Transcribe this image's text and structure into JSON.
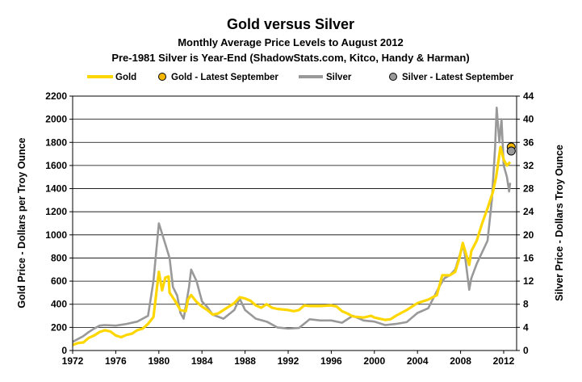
{
  "chart_data": {
    "type": "line",
    "title": "Gold versus Silver",
    "subtitle1": "Monthly Average Price Levels to August 2012",
    "subtitle2": "Pre-1981 Silver is Year-End (ShadowStats.com, Kitco, Handy & Harman)",
    "ylabel_left": "Gold Price - Dollars per Troy Ounce",
    "ylabel_right": "Silver Price - Dollars Troy Ounce",
    "x_ticks": [
      "1972",
      "1976",
      "1980",
      "1984",
      "1988",
      "1992",
      "1996",
      "2000",
      "2004",
      "2008",
      "2012"
    ],
    "y_left_ticks": [
      "0",
      "200",
      "400",
      "600",
      "800",
      "1000",
      "1200",
      "1400",
      "1600",
      "1800",
      "2000",
      "2200"
    ],
    "y_right_ticks": [
      "0",
      "4",
      "8",
      "12",
      "16",
      "20",
      "24",
      "28",
      "32",
      "36",
      "40",
      "44"
    ],
    "xlim": [
      1972,
      2013.2
    ],
    "ylim_left": [
      0,
      2200
    ],
    "ylim_right": [
      0,
      44
    ],
    "grid": "horizontal",
    "legend_position": "top",
    "colors": {
      "gold": "#FFD700",
      "silver": "#999999",
      "gold_marker": "#F5B800",
      "silver_marker": "#999999"
    },
    "legend": [
      {
        "label": "Gold",
        "kind": "line",
        "color": "#FFD700"
      },
      {
        "label": "Gold - Latest September",
        "kind": "marker",
        "color": "#F5B800"
      },
      {
        "label": "Silver",
        "kind": "line",
        "color": "#999999"
      },
      {
        "label": "Silver - Latest September",
        "kind": "marker",
        "color": "#999999"
      }
    ],
    "series": [
      {
        "name": "Gold",
        "axis": "left",
        "points": [
          [
            1972.0,
            48
          ],
          [
            1972.5,
            65
          ],
          [
            1973.0,
            70
          ],
          [
            1973.5,
            110
          ],
          [
            1974.0,
            130
          ],
          [
            1974.5,
            160
          ],
          [
            1975.0,
            175
          ],
          [
            1975.5,
            165
          ],
          [
            1976.0,
            130
          ],
          [
            1976.5,
            115
          ],
          [
            1977.0,
            135
          ],
          [
            1977.5,
            145
          ],
          [
            1978.0,
            175
          ],
          [
            1978.5,
            190
          ],
          [
            1979.0,
            230
          ],
          [
            1979.5,
            290
          ],
          [
            1980.0,
            680
          ],
          [
            1980.3,
            520
          ],
          [
            1980.6,
            630
          ],
          [
            1980.9,
            640
          ],
          [
            1981.0,
            500
          ],
          [
            1981.5,
            430
          ],
          [
            1982.0,
            350
          ],
          [
            1982.5,
            340
          ],
          [
            1982.7,
            440
          ],
          [
            1983.0,
            480
          ],
          [
            1983.5,
            420
          ],
          [
            1984.0,
            380
          ],
          [
            1984.5,
            350
          ],
          [
            1985.0,
            310
          ],
          [
            1985.5,
            320
          ],
          [
            1986.0,
            350
          ],
          [
            1986.5,
            380
          ],
          [
            1987.0,
            410
          ],
          [
            1987.5,
            460
          ],
          [
            1988.0,
            450
          ],
          [
            1988.5,
            430
          ],
          [
            1989.0,
            390
          ],
          [
            1989.5,
            370
          ],
          [
            1990.0,
            400
          ],
          [
            1990.5,
            370
          ],
          [
            1991.0,
            360
          ],
          [
            1992.0,
            350
          ],
          [
            1992.5,
            340
          ],
          [
            1993.0,
            350
          ],
          [
            1993.5,
            390
          ],
          [
            1994.0,
            385
          ],
          [
            1995.0,
            385
          ],
          [
            1996.0,
            390
          ],
          [
            1996.5,
            380
          ],
          [
            1997.0,
            340
          ],
          [
            1997.5,
            320
          ],
          [
            1998.0,
            295
          ],
          [
            1999.0,
            285
          ],
          [
            1999.7,
            300
          ],
          [
            2000.0,
            285
          ],
          [
            2001.0,
            265
          ],
          [
            2001.5,
            270
          ],
          [
            2002.0,
            300
          ],
          [
            2003.0,
            350
          ],
          [
            2004.0,
            410
          ],
          [
            2005.0,
            440
          ],
          [
            2005.8,
            480
          ],
          [
            2006.3,
            650
          ],
          [
            2007.0,
            650
          ],
          [
            2007.5,
            680
          ],
          [
            2007.9,
            800
          ],
          [
            2008.2,
            930
          ],
          [
            2008.8,
            740
          ],
          [
            2009.0,
            860
          ],
          [
            2009.5,
            950
          ],
          [
            2010.0,
            1100
          ],
          [
            2010.5,
            1230
          ],
          [
            2011.0,
            1370
          ],
          [
            2011.3,
            1500
          ],
          [
            2011.7,
            1760
          ],
          [
            2012.0,
            1650
          ],
          [
            2012.3,
            1600
          ],
          [
            2012.6,
            1630
          ]
        ]
      },
      {
        "name": "Silver",
        "axis": "right",
        "points": [
          [
            1972.0,
            1.5
          ],
          [
            1972.5,
            2.0
          ],
          [
            1973.0,
            2.5
          ],
          [
            1973.5,
            3.2
          ],
          [
            1974.0,
            3.8
          ],
          [
            1974.5,
            4.3
          ],
          [
            1975.0,
            4.4
          ],
          [
            1976.0,
            4.3
          ],
          [
            1977.0,
            4.6
          ],
          [
            1978.0,
            5.0
          ],
          [
            1978.5,
            5.5
          ],
          [
            1979.0,
            6.0
          ],
          [
            1979.5,
            12.0
          ],
          [
            1980.0,
            22.0
          ],
          [
            1980.5,
            19.0
          ],
          [
            1981.0,
            16.0
          ],
          [
            1981.3,
            11.0
          ],
          [
            1981.7,
            9.5
          ],
          [
            1982.0,
            6.5
          ],
          [
            1982.3,
            5.5
          ],
          [
            1982.8,
            11.0
          ],
          [
            1983.0,
            14.0
          ],
          [
            1983.5,
            12.0
          ],
          [
            1984.0,
            8.5
          ],
          [
            1984.5,
            7.5
          ],
          [
            1985.0,
            6.2
          ],
          [
            1986.0,
            5.5
          ],
          [
            1987.0,
            7.0
          ],
          [
            1987.5,
            9.0
          ],
          [
            1988.0,
            7.0
          ],
          [
            1989.0,
            5.5
          ],
          [
            1990.0,
            5.0
          ],
          [
            1991.0,
            4.0
          ],
          [
            1992.0,
            3.8
          ],
          [
            1993.0,
            3.9
          ],
          [
            1994.0,
            5.4
          ],
          [
            1995.0,
            5.2
          ],
          [
            1996.0,
            5.2
          ],
          [
            1997.0,
            4.8
          ],
          [
            1998.0,
            6.0
          ],
          [
            1999.0,
            5.2
          ],
          [
            2000.0,
            5.0
          ],
          [
            2001.0,
            4.4
          ],
          [
            2002.0,
            4.6
          ],
          [
            2003.0,
            4.9
          ],
          [
            2004.0,
            6.5
          ],
          [
            2005.0,
            7.3
          ],
          [
            2006.0,
            11.0
          ],
          [
            2006.5,
            12.5
          ],
          [
            2007.0,
            13.0
          ],
          [
            2007.5,
            14.0
          ],
          [
            2008.0,
            17.0
          ],
          [
            2008.3,
            18.0
          ],
          [
            2008.8,
            10.5
          ],
          [
            2009.0,
            12.5
          ],
          [
            2009.5,
            15.0
          ],
          [
            2010.0,
            17.0
          ],
          [
            2010.5,
            19.0
          ],
          [
            2010.9,
            26.0
          ],
          [
            2011.2,
            35.0
          ],
          [
            2011.35,
            42.0
          ],
          [
            2011.6,
            36.0
          ],
          [
            2011.8,
            40.0
          ],
          [
            2012.0,
            32.0
          ],
          [
            2012.3,
            30.0
          ],
          [
            2012.5,
            27.5
          ],
          [
            2012.6,
            29.0
          ]
        ]
      }
    ],
    "latest_september": {
      "date": 2012.7,
      "gold": 1760,
      "silver": 34.5
    }
  }
}
